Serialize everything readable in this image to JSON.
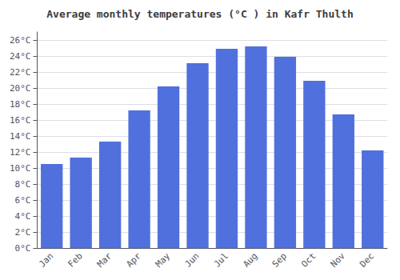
{
  "chart_data": {
    "type": "bar",
    "title": "Average monthly temperatures (°C ) in Kafr Thulth",
    "categories": [
      "Jan",
      "Feb",
      "Mar",
      "Apr",
      "May",
      "Jun",
      "Jul",
      "Aug",
      "Sep",
      "Oct",
      "Nov",
      "Dec"
    ],
    "values": [
      10.5,
      11.3,
      13.3,
      17.2,
      20.2,
      23.1,
      24.9,
      25.2,
      23.9,
      20.9,
      16.7,
      12.2
    ],
    "ylim": [
      0,
      27
    ],
    "yticks": [
      {
        "value": 0,
        "label": "0°C"
      },
      {
        "value": 2,
        "label": "2°C"
      },
      {
        "value": 4,
        "label": "4°C"
      },
      {
        "value": 6,
        "label": "6°C"
      },
      {
        "value": 8,
        "label": "8°C"
      },
      {
        "value": 10,
        "label": "10°C"
      },
      {
        "value": 12,
        "label": "12°C"
      },
      {
        "value": 14,
        "label": "14°C"
      },
      {
        "value": 16,
        "label": "16°C"
      },
      {
        "value": 18,
        "label": "18°C"
      },
      {
        "value": 20,
        "label": "20°C"
      },
      {
        "value": 22,
        "label": "22°C"
      },
      {
        "value": 24,
        "label": "24°C"
      },
      {
        "value": 26,
        "label": "26°C"
      }
    ],
    "grid": true
  }
}
